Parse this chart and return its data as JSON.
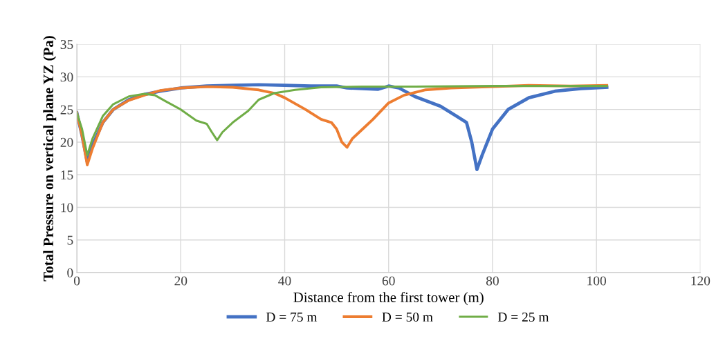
{
  "chart_data": {
    "type": "line",
    "xlabel": "Distance from the first tower (m)",
    "ylabel": "Total Pressure on vertical plane YZ (Pa)",
    "xlim": [
      0,
      120
    ],
    "xticks": [
      0,
      20,
      40,
      60,
      80,
      100,
      120
    ],
    "ylim": [
      0,
      35
    ],
    "yticks": [
      0,
      5,
      10,
      15,
      20,
      25,
      30,
      35
    ],
    "grid": true,
    "legend": "bottom",
    "marker": "none",
    "line_style": "solid",
    "series": [
      {
        "name": "D = 75 m",
        "color": "#4472c4",
        "x": [
          0,
          1,
          2,
          3,
          5,
          7,
          10,
          13,
          16,
          20,
          25,
          30,
          35,
          40,
          45,
          50,
          52,
          55,
          58,
          60,
          62,
          65,
          70,
          73,
          75,
          76,
          77,
          78,
          80,
          83,
          87,
          92,
          97,
          102
        ],
        "values": [
          24.5,
          21,
          17,
          19.5,
          23,
          25,
          26.5,
          27.3,
          27.8,
          28.3,
          28.6,
          28.7,
          28.8,
          28.7,
          28.6,
          28.6,
          28.3,
          28.2,
          28.1,
          28.6,
          28.3,
          27,
          25.5,
          24,
          23,
          20,
          15.8,
          18,
          22,
          25,
          26.8,
          27.8,
          28.2,
          28.4
        ]
      },
      {
        "name": "D = 50 m",
        "color": "#ed7d31",
        "x": [
          0,
          1,
          2,
          3,
          5,
          7,
          10,
          13,
          16,
          20,
          25,
          30,
          35,
          38,
          40,
          44,
          47,
          49,
          50,
          51,
          52,
          53,
          55,
          57,
          60,
          63,
          67,
          72,
          80,
          87,
          95,
          102
        ],
        "values": [
          24.5,
          21,
          16.5,
          19,
          23,
          25,
          26.4,
          27.2,
          27.9,
          28.3,
          28.5,
          28.4,
          28,
          27.5,
          26.8,
          25,
          23.5,
          23,
          22,
          20,
          19.2,
          20.5,
          22,
          23.5,
          26,
          27.2,
          28,
          28.3,
          28.5,
          28.7,
          28.6,
          28.7
        ]
      },
      {
        "name": "D = 25 m",
        "color": "#70ad47",
        "x": [
          0,
          1,
          2,
          3,
          5,
          7,
          10,
          13,
          15,
          17,
          20,
          23,
          25,
          26,
          27,
          28,
          30,
          33,
          35,
          38,
          42,
          47,
          55,
          65,
          80,
          102
        ],
        "values": [
          24.5,
          22,
          18,
          20.5,
          24,
          25.8,
          27,
          27.4,
          27.2,
          26.3,
          25,
          23.3,
          22.8,
          21.5,
          20.3,
          21.5,
          23,
          24.8,
          26.5,
          27.5,
          28,
          28.4,
          28.5,
          28.5,
          28.6,
          28.6
        ]
      }
    ]
  }
}
